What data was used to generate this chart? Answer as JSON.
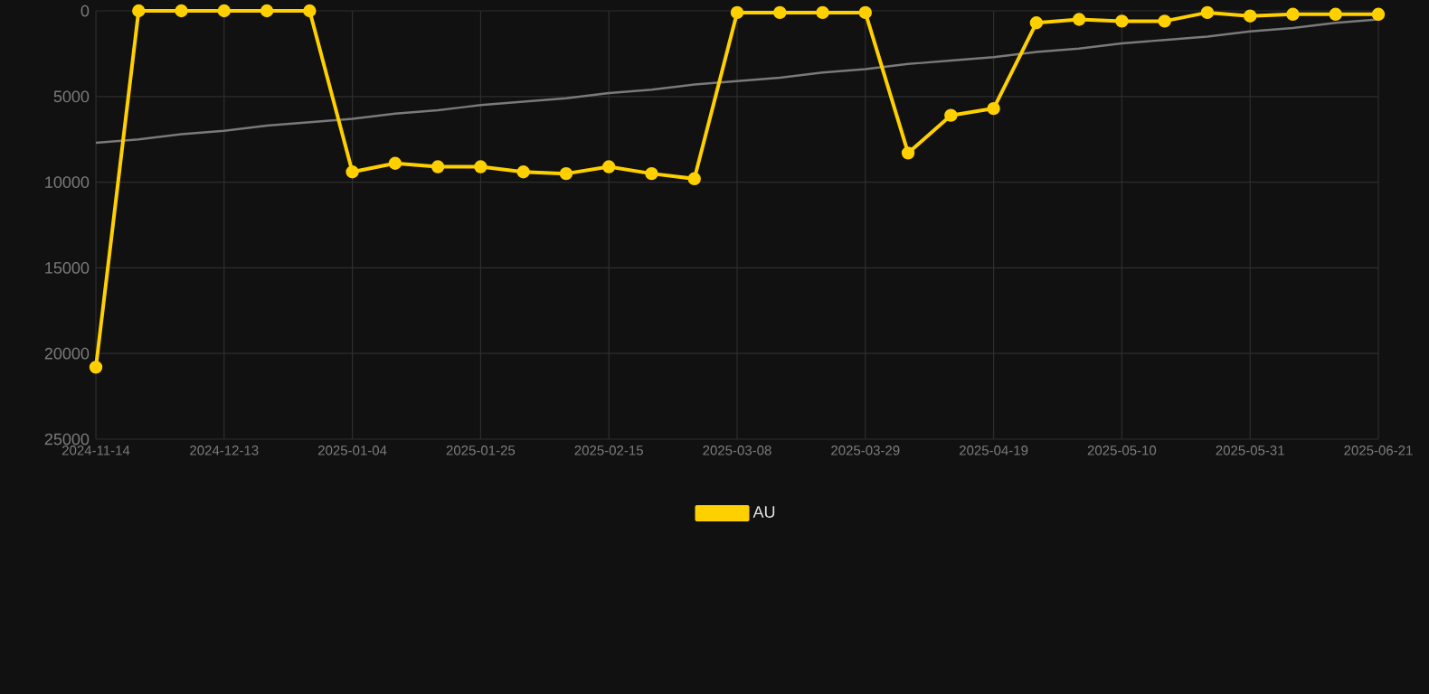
{
  "chart_data": {
    "type": "line",
    "categories": [
      "2024-11-14",
      null,
      null,
      "2024-12-13",
      null,
      null,
      "2025-01-04",
      null,
      null,
      "2025-01-25",
      null,
      null,
      "2025-02-15",
      null,
      null,
      "2025-03-08",
      null,
      null,
      "2025-03-29",
      null,
      null,
      "2025-04-19",
      null,
      null,
      "2025-05-10",
      null,
      null,
      "2025-05-31",
      null,
      null,
      "2025-06-21"
    ],
    "series": [
      {
        "name": "AU",
        "color": "#ffd000",
        "marker": "circle",
        "values": [
          20800,
          0,
          0,
          0,
          0,
          0,
          9400,
          8900,
          9100,
          9100,
          9400,
          9500,
          9100,
          9500,
          9800,
          100,
          100,
          100,
          100,
          8300,
          6100,
          5700,
          700,
          500,
          600,
          600,
          100,
          300,
          200,
          200,
          200
        ]
      },
      {
        "type": "line",
        "color": "#7a7a7a",
        "marker": "none",
        "values": [
          7700,
          7500,
          7200,
          7000,
          6700,
          6500,
          6300,
          6000,
          5800,
          5500,
          5300,
          5100,
          4800,
          4600,
          4300,
          4100,
          3900,
          3600,
          3400,
          3100,
          2900,
          2700,
          2400,
          2200,
          1900,
          1700,
          1500,
          1200,
          1000,
          700,
          500
        ]
      }
    ],
    "ylim": [
      25000,
      0
    ],
    "yticks": [
      0,
      5000,
      10000,
      15000,
      20000,
      25000
    ],
    "grid": true,
    "legend": "bottom",
    "line_style": "solid"
  }
}
